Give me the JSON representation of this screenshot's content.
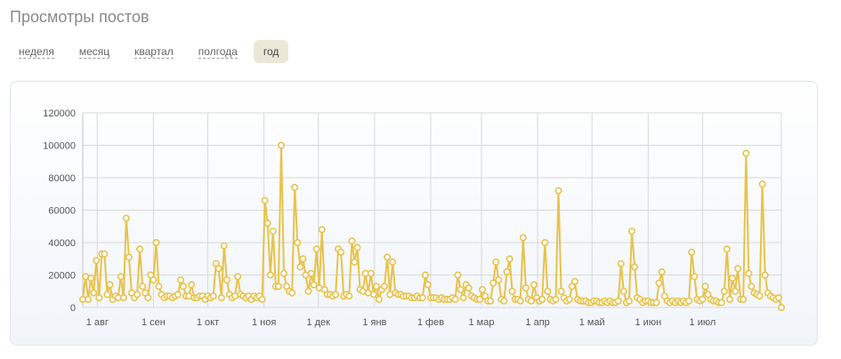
{
  "header": {
    "title": "Просмотры постов"
  },
  "tabs": [
    {
      "label": "неделя",
      "active": false
    },
    {
      "label": "месяц",
      "active": false
    },
    {
      "label": "квартал",
      "active": false
    },
    {
      "label": "полгода",
      "active": false
    },
    {
      "label": "год",
      "active": true
    }
  ],
  "colors": {
    "line": "#e8c24a",
    "marker_fill": "#ffffff",
    "grid": "#d8d8d8"
  },
  "chart_data": {
    "type": "line",
    "title": "",
    "xlabel": "",
    "ylabel": "",
    "ylim": [
      0,
      120000
    ],
    "yticks": [
      "0",
      "20000",
      "40000",
      "60000",
      "80000",
      "100000",
      "120000"
    ],
    "x_start": "2013-07-24",
    "x_ticks": [
      {
        "label": "1 авг",
        "date": "2013-08-01"
      },
      {
        "label": "1 сен",
        "date": "2013-09-01"
      },
      {
        "label": "1 окт",
        "date": "2013-10-01"
      },
      {
        "label": "1 ноя",
        "date": "2013-11-01"
      },
      {
        "label": "1 дек",
        "date": "2013-12-01"
      },
      {
        "label": "1 янв",
        "date": "2014-01-01"
      },
      {
        "label": "1 фев",
        "date": "2014-02-01"
      },
      {
        "label": "1 мар",
        "date": "2014-03-01"
      },
      {
        "label": "1 апр",
        "date": "2014-04-01"
      },
      {
        "label": "1 май",
        "date": "2014-05-01"
      },
      {
        "label": "1 июн",
        "date": "2014-06-01"
      },
      {
        "label": "1 июл",
        "date": "2014-07-01"
      }
    ],
    "series": [
      {
        "values": [
          5000,
          19000,
          5000,
          18000,
          9000,
          29000,
          6000,
          33000,
          33000,
          8000,
          14000,
          5000,
          7000,
          6000,
          19000,
          6000,
          55000,
          31000,
          9000,
          6000,
          8000,
          36000,
          13000,
          9000,
          6000,
          20000,
          17000,
          40000,
          13000,
          8000,
          6000,
          7000,
          7000,
          6000,
          7000,
          8000,
          17000,
          13000,
          7000,
          7000,
          14000,
          6000,
          6000,
          7000,
          7000,
          5000,
          7000,
          6000,
          7000,
          27000,
          24000,
          6000,
          38000,
          17000,
          8000,
          6000,
          7000,
          19000,
          8000,
          7000,
          6000,
          7000,
          5000,
          7000,
          6000,
          7000,
          5000,
          66000,
          52000,
          20000,
          47000,
          13000,
          13000,
          100000,
          21000,
          13000,
          10000,
          9000,
          74000,
          40000,
          25000,
          30000,
          20000,
          10000,
          21000,
          14000,
          36000,
          12000,
          48000,
          11000,
          8000,
          8000,
          7000,
          8000,
          36000,
          34000,
          7000,
          8000,
          7000,
          41000,
          28000,
          37000,
          11000,
          10000,
          21000,
          9000,
          21000,
          8000,
          13000,
          5000,
          11000,
          13000,
          31000,
          8000,
          28000,
          9000,
          8000,
          8000,
          7000,
          7000,
          7000,
          6000,
          6000,
          7000,
          6000,
          6000,
          20000,
          14000,
          6000,
          6000,
          6000,
          5000,
          6000,
          5000,
          5000,
          5000,
          6000,
          5000,
          20000,
          11000,
          6000,
          14000,
          12000,
          7000,
          6000,
          5000,
          5000,
          11000,
          7000,
          4000,
          4000,
          15000,
          28000,
          17000,
          5000,
          4000,
          22000,
          30000,
          10000,
          5000,
          5000,
          4000,
          43000,
          12000,
          5000,
          4000,
          14000,
          6000,
          4000,
          5000,
          40000,
          10000,
          5000,
          4000,
          5000,
          72000,
          10000,
          6000,
          4000,
          5000,
          13000,
          16000,
          5000,
          4000,
          4000,
          4000,
          3000,
          3000,
          4000,
          4000,
          3000,
          3000,
          4000,
          3000,
          4000,
          3000,
          3000,
          4000,
          27000,
          10000,
          3000,
          4000,
          47000,
          25000,
          6000,
          5000,
          3000,
          4000,
          4000,
          3000,
          3000,
          3000,
          15000,
          22000,
          7000,
          4000,
          3000,
          4000,
          3000,
          4000,
          3000,
          4000,
          3000,
          4000,
          34000,
          19000,
          5000,
          4000,
          5000,
          13000,
          8000,
          5000,
          4000,
          4000,
          3000,
          3000,
          10000,
          36000,
          5000,
          18000,
          10000,
          24000,
          5000,
          5000,
          95000,
          21000,
          13000,
          9000,
          8000,
          7000,
          76000,
          20000,
          9000,
          7000,
          6000,
          5000,
          6000,
          0
        ]
      }
    ]
  }
}
